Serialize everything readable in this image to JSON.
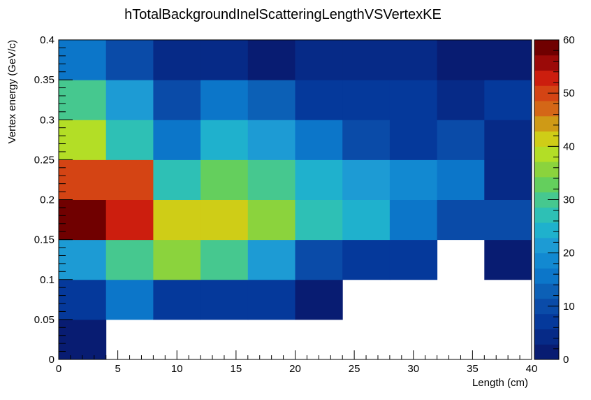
{
  "chart_data": {
    "type": "heatmap",
    "title": "hTotalBackgroundInelScatteringLengthVSVertexKE",
    "xlabel": "Length (cm)",
    "ylabel": "Vertex energy (GeV/c)",
    "x_edges": [
      0,
      4,
      8,
      12,
      16,
      20,
      24,
      28,
      32,
      36,
      40
    ],
    "y_edges": [
      0,
      0.05,
      0.1,
      0.15,
      0.2,
      0.25,
      0.3,
      0.35,
      0.4
    ],
    "xlim": [
      0,
      40
    ],
    "ylim": [
      0,
      0.4
    ],
    "zlim": [
      0,
      60
    ],
    "x_ticks": [
      "0",
      "5",
      "10",
      "15",
      "20",
      "25",
      "30",
      "35",
      "40"
    ],
    "y_ticks": [
      "0",
      "0.05",
      "0.1",
      "0.15",
      "0.2",
      "0.25",
      "0.3",
      "0.35",
      "0.4"
    ],
    "z_ticks": [
      "0",
      "10",
      "20",
      "30",
      "40",
      "50",
      "60"
    ],
    "values": [
      [
        2,
        null,
        null,
        null,
        null,
        null,
        null,
        null,
        null,
        null
      ],
      [
        6,
        15,
        8,
        8,
        6,
        2,
        null,
        null,
        null,
        null
      ],
      [
        20,
        31,
        35,
        31,
        20,
        11,
        8,
        6,
        null,
        2
      ],
      [
        58,
        53,
        41,
        41,
        35,
        26,
        23,
        15,
        11,
        11
      ],
      [
        50,
        50,
        28,
        33,
        30,
        23,
        20,
        18,
        15,
        4
      ],
      [
        38,
        26,
        17,
        23,
        20,
        17,
        11,
        8,
        11,
        4
      ],
      [
        30,
        21,
        11,
        15,
        12,
        8,
        8,
        8,
        5,
        8
      ],
      [
        15,
        11,
        5,
        5,
        2,
        5,
        5,
        5,
        2,
        2
      ]
    ],
    "palette": [
      "#081c72",
      "#062a87",
      "#05399b",
      "#0a4ba8",
      "#0c60b6",
      "#0c76c9",
      "#1289d1",
      "#1d9bd4",
      "#1fb1cd",
      "#2ec0b5",
      "#46c88f",
      "#64cf5d",
      "#8bd33d",
      "#b3de26",
      "#cfcd17",
      "#cf9a16",
      "#d46717",
      "#d44414",
      "#cc1e0e",
      "#9b0a08",
      "#700000"
    ],
    "grid": false
  }
}
